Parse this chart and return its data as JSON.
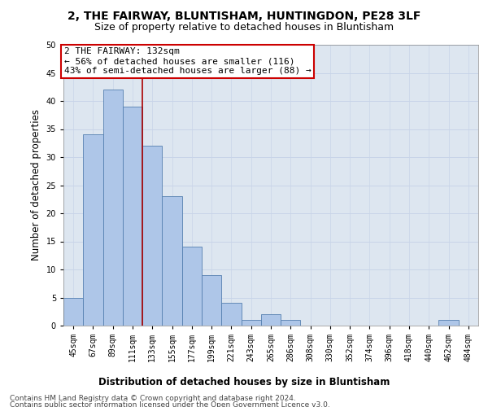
{
  "title": "2, THE FAIRWAY, BLUNTISHAM, HUNTINGDON, PE28 3LF",
  "subtitle": "Size of property relative to detached houses in Bluntisham",
  "xlabel": "Distribution of detached houses by size in Bluntisham",
  "ylabel": "Number of detached properties",
  "footer_line1": "Contains HM Land Registry data © Crown copyright and database right 2024.",
  "footer_line2": "Contains public sector information licensed under the Open Government Licence v3.0.",
  "annotation_line1": "2 THE FAIRWAY: 132sqm",
  "annotation_line2": "← 56% of detached houses are smaller (116)",
  "annotation_line3": "43% of semi-detached houses are larger (88) →",
  "bar_values": [
    5,
    34,
    42,
    39,
    32,
    23,
    14,
    9,
    4,
    1,
    2,
    1,
    0,
    0,
    0,
    0,
    0,
    0,
    0,
    1,
    0
  ],
  "categories": [
    "45sqm",
    "67sqm",
    "89sqm",
    "111sqm",
    "133sqm",
    "155sqm",
    "177sqm",
    "199sqm",
    "221sqm",
    "243sqm",
    "265sqm",
    "286sqm",
    "308sqm",
    "330sqm",
    "352sqm",
    "374sqm",
    "396sqm",
    "418sqm",
    "440sqm",
    "462sqm",
    "484sqm"
  ],
  "bar_color": "#aec6e8",
  "bar_edge_color": "#5580b0",
  "reference_line_x": 3.5,
  "reference_line_color": "#aa0000",
  "ylim": [
    0,
    50
  ],
  "yticks": [
    0,
    5,
    10,
    15,
    20,
    25,
    30,
    35,
    40,
    45,
    50
  ],
  "grid_color": "#c8d4e8",
  "bg_color": "#dde6f0",
  "annotation_box_color": "#cc0000",
  "title_fontsize": 10,
  "subtitle_fontsize": 9,
  "axis_label_fontsize": 8.5,
  "tick_fontsize": 7,
  "annotation_fontsize": 8,
  "footer_fontsize": 6.5
}
